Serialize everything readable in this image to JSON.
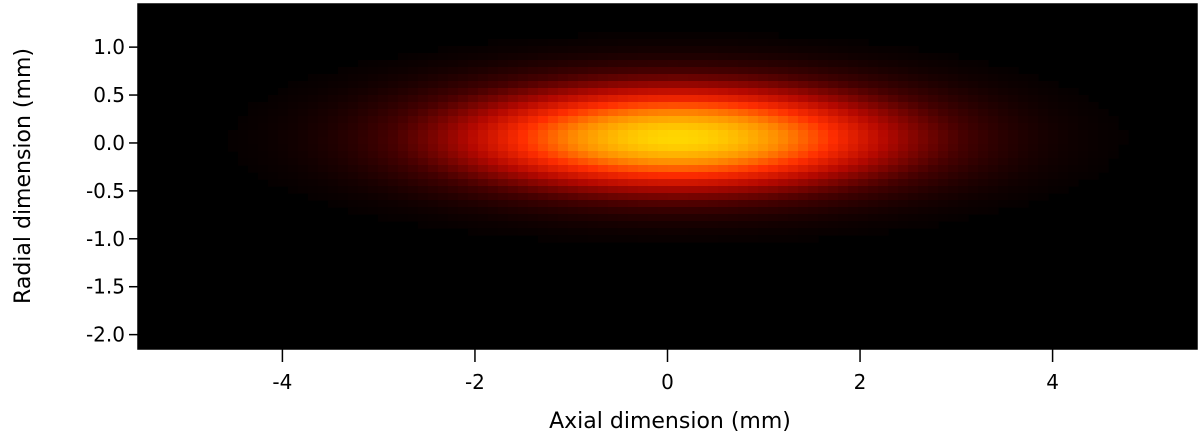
{
  "chart_data": {
    "type": "heatmap",
    "title": "",
    "xlabel": "Axial dimension (mm)",
    "ylabel": "Radial dimension (mm)",
    "xlim": [
      -5.5,
      5.5
    ],
    "ylim": [
      -2.15,
      1.45
    ],
    "x_ticks": [
      -4,
      -2,
      0,
      2,
      4
    ],
    "x_tick_labels": [
      "-4",
      "-2",
      "0",
      "2",
      "4"
    ],
    "y_ticks": [
      1.0,
      0.5,
      0.0,
      -0.5,
      -1.0,
      -1.5,
      -2.0
    ],
    "y_tick_labels": [
      "1.0",
      "0.5",
      "0.0",
      "-0.5",
      "-1.0",
      "-1.5",
      "-2.0"
    ],
    "colormap": "black-red-yellow (hot)",
    "colors": [
      "#000000",
      "#5a0000",
      "#c80a00",
      "#ff3a00",
      "#ff9a00",
      "#ffd000"
    ],
    "distribution": {
      "shape": "elongated gaussian",
      "center": [
        0.1,
        0.05
      ],
      "sigma_axial_mm": 1.6,
      "sigma_radial_mm": 0.38,
      "peak_intensity": 1.0
    },
    "grid": false,
    "legend": "none"
  }
}
